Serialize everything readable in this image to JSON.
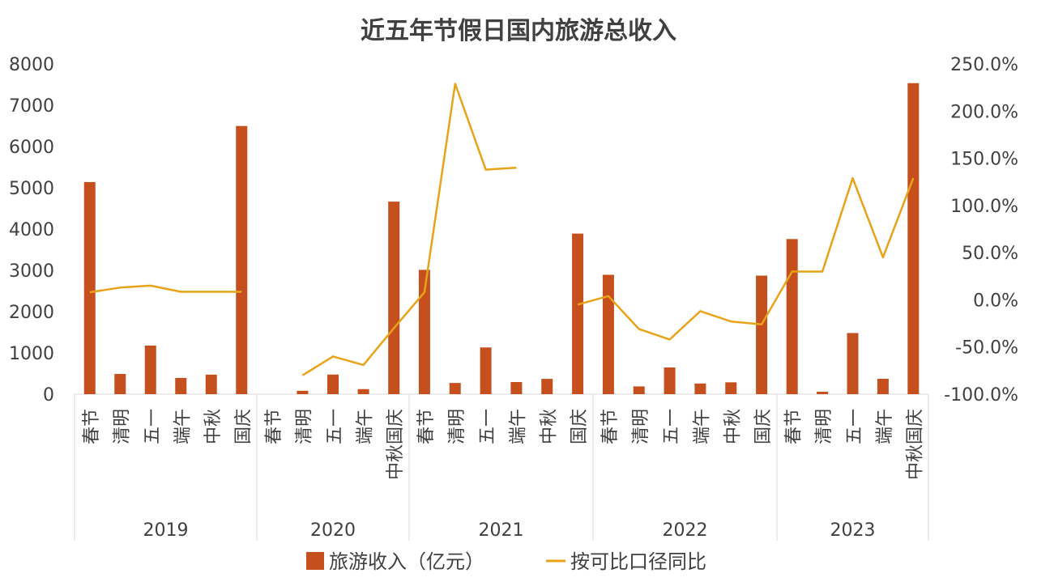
{
  "chart_data": {
    "type": "bar",
    "title": "近五年节假日国内旅游总收入",
    "colors": {
      "bar": "#C5501E",
      "line": "#E8A318",
      "axis": "#D9D9D9",
      "text": "#404040"
    },
    "left_axis": {
      "ylim": [
        0,
        8000
      ],
      "ticks": [
        "0",
        "1000",
        "2000",
        "3000",
        "4000",
        "5000",
        "6000",
        "7000",
        "8000"
      ]
    },
    "right_axis": {
      "ylim": [
        -100,
        250
      ],
      "ticks": [
        "-100.0%",
        "-50.0%",
        "0.0%",
        "50.0%",
        "100.0%",
        "150.0%",
        "200.0%",
        "250.0%"
      ]
    },
    "groups": [
      {
        "year": "2019",
        "categories": [
          "春节",
          "清明",
          "五一",
          "端午",
          "中秋",
          "国庆"
        ]
      },
      {
        "year": "2020",
        "categories": [
          "春节",
          "清明",
          "五一",
          "端午",
          "中秋国庆"
        ]
      },
      {
        "year": "2021",
        "categories": [
          "春节",
          "清明",
          "五一",
          "端午",
          "中秋",
          "国庆"
        ]
      },
      {
        "year": "2022",
        "categories": [
          "春节",
          "清明",
          "五一",
          "端午",
          "中秋",
          "国庆"
        ]
      },
      {
        "year": "2023",
        "categories": [
          "春节",
          "清明",
          "五一",
          "端午",
          "中秋国庆"
        ]
      }
    ],
    "series": [
      {
        "name": "旅游收入（亿元）",
        "type": "bar",
        "axis": "left",
        "values": [
          5139,
          490,
          1177,
          393,
          473,
          6497,
          0,
          82,
          475,
          123,
          4665,
          3012,
          272,
          1132,
          294,
          371,
          3890,
          2892,
          188,
          647,
          258,
          287,
          2872,
          3758,
          60,
          1481,
          373,
          7535
        ]
      },
      {
        "name": "按可比口径同比",
        "type": "line",
        "axis": "right",
        "values": [
          8,
          13,
          15,
          8.5,
          8.5,
          8.5,
          null,
          -80,
          -60,
          -69,
          -30,
          8,
          229,
          138,
          140,
          null,
          -5,
          4,
          -31,
          -42,
          -12,
          -23,
          -26,
          30,
          30,
          129,
          45,
          129
        ]
      }
    ]
  }
}
